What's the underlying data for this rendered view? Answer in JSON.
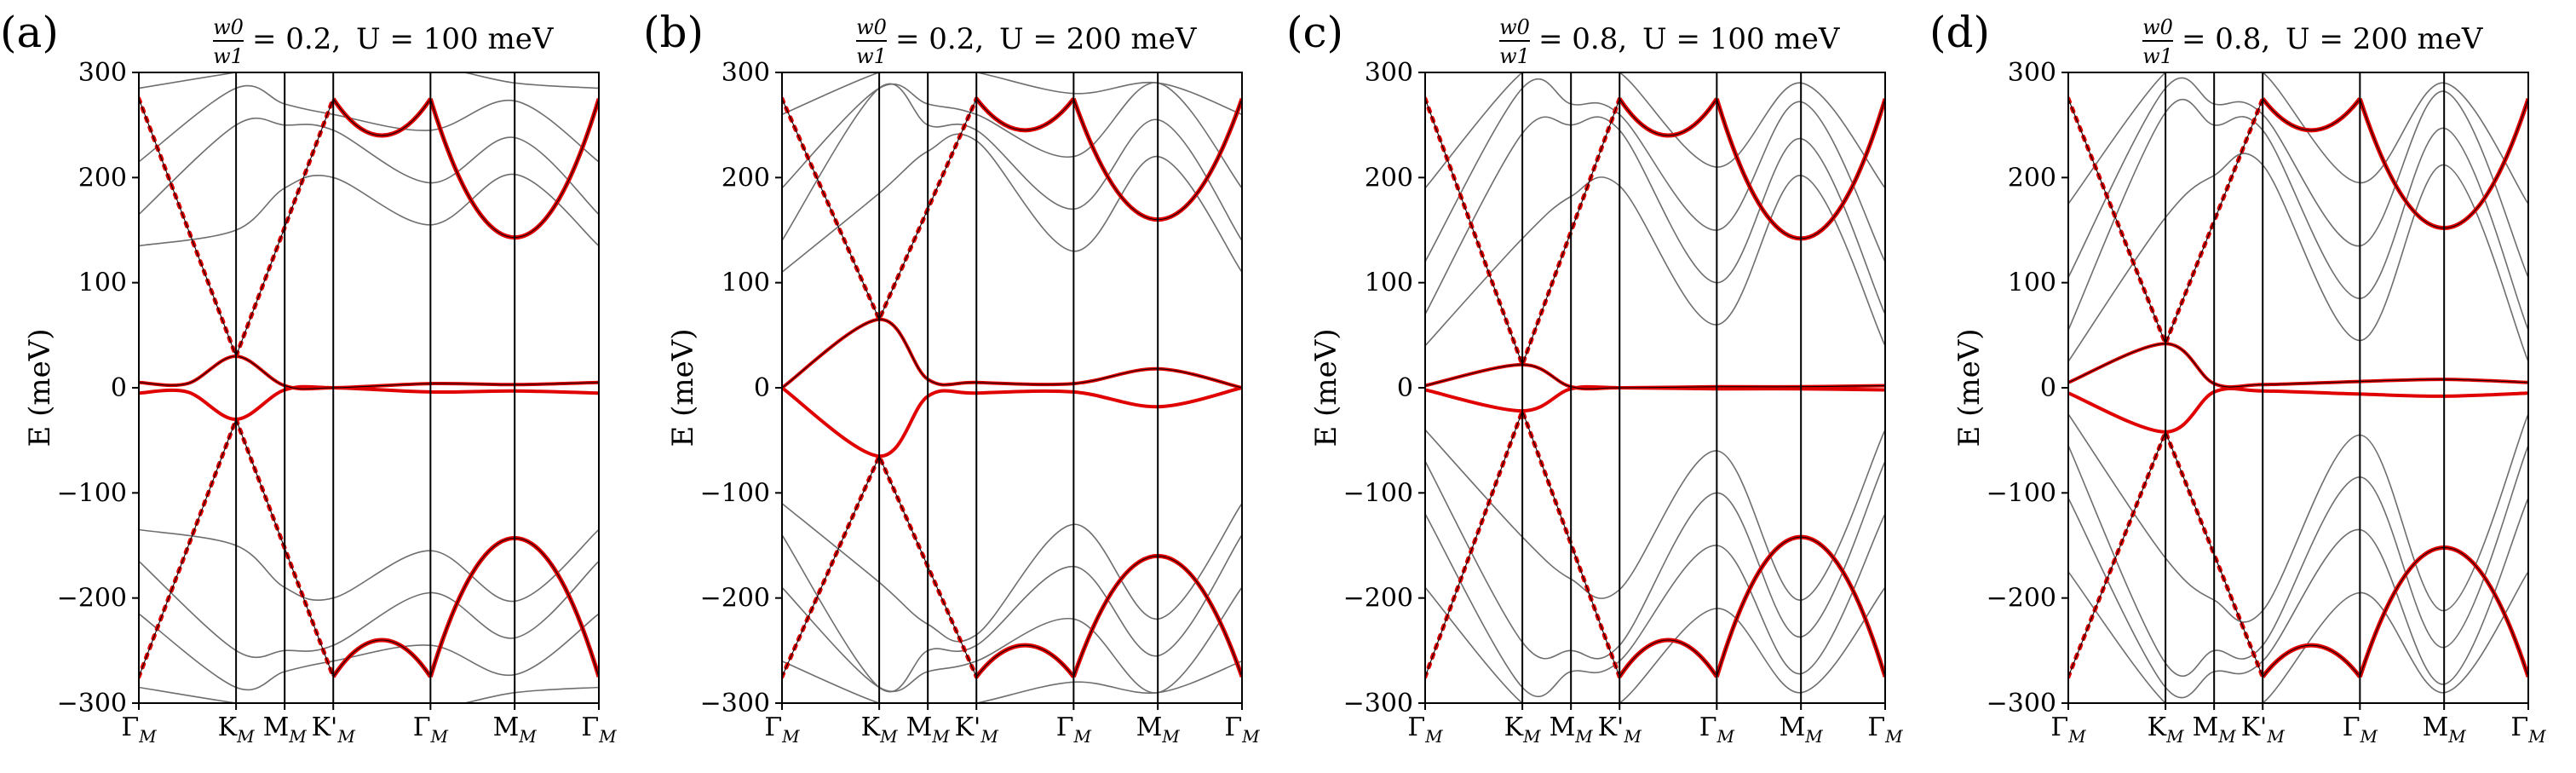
{
  "figure": {
    "description_free": true
  },
  "chart_data": [
    {
      "type": "line",
      "panel_label": "(a)",
      "title": "w0/w1 = 0.2,  U = 100 meV",
      "title_parts": {
        "ratio_num": "w0",
        "ratio_den": "w1",
        "ratio_value": "= 0.2,",
        "u_text": "U = 100 meV"
      },
      "xlabel": "",
      "ylabel": "E (meV)",
      "ylim": [
        -300,
        300
      ],
      "yticks": [
        -300,
        -200,
        -100,
        0,
        100,
        200,
        300
      ],
      "ytick_labels": [
        "−300",
        "−200",
        "−100",
        "0",
        "100",
        "200",
        "300"
      ],
      "kpoints": [
        "Γ_M",
        "K_M",
        "M_M",
        "K'_M",
        "Γ_M",
        "M_M",
        "Γ_M"
      ],
      "kpoint_positions": [
        0,
        1,
        1.5,
        2,
        3,
        3.866,
        4.732
      ],
      "dirac_energy": 30,
      "top_min": 240,
      "m_band": 143,
      "gray_offset": 135,
      "series": [
        {
          "name": "flat-bands",
          "style": "red",
          "points": [
            [
              0,
              5
            ],
            [
              0.5,
              4
            ],
            [
              1,
              30
            ],
            [
              1.5,
              2
            ],
            [
              2,
              0
            ],
            [
              3,
              4
            ],
            [
              3.866,
              3
            ],
            [
              4.732,
              5
            ]
          ]
        },
        {
          "name": "dirac-cone-up",
          "style": "red-dotted",
          "points": [
            [
              0,
              275
            ],
            [
              1,
              30
            ],
            [
              2,
              275
            ]
          ]
        },
        {
          "name": "dirac-cone-down",
          "style": "red-dotted",
          "points": [
            [
              0,
              -275
            ],
            [
              1,
              -30
            ],
            [
              2,
              -275
            ]
          ]
        },
        {
          "name": "upper-parabola",
          "style": "red",
          "points": [
            [
              2,
              275
            ],
            [
              2.5,
              240
            ],
            [
              3,
              275
            ],
            [
              3.866,
              143
            ],
            [
              4.732,
              275
            ]
          ]
        },
        {
          "name": "lower-parabola",
          "style": "red",
          "points": [
            [
              2,
              -275
            ],
            [
              2.5,
              -240
            ],
            [
              3,
              -275
            ],
            [
              3.866,
              -143
            ],
            [
              4.732,
              -275
            ]
          ]
        }
      ]
    },
    {
      "type": "line",
      "panel_label": "(b)",
      "title": "w0/w1 = 0.2,  U = 200 meV",
      "title_parts": {
        "ratio_num": "w0",
        "ratio_den": "w1",
        "ratio_value": "= 0.2,",
        "u_text": "U = 200 meV"
      },
      "xlabel": "",
      "ylabel": "E (meV)",
      "ylim": [
        -300,
        300
      ],
      "yticks": [
        -300,
        -200,
        -100,
        0,
        100,
        200,
        300
      ],
      "ytick_labels": [
        "−300",
        "−200",
        "−100",
        "0",
        "100",
        "200",
        "300"
      ],
      "kpoints": [
        "Γ_M",
        "K_M",
        "M_M",
        "K'_M",
        "Γ_M",
        "M_M",
        "Γ_M"
      ],
      "kpoint_positions": [
        0,
        1,
        1.5,
        2,
        3,
        3.866,
        4.732
      ],
      "dirac_energy": 65,
      "top_min": 245,
      "m_band": 160,
      "gray_offset": 110,
      "series": [
        {
          "name": "flat-bands",
          "style": "red",
          "points": [
            [
              0,
              0
            ],
            [
              1,
              65
            ],
            [
              1.5,
              8
            ],
            [
              2,
              5
            ],
            [
              3,
              4
            ],
            [
              3.866,
              18
            ],
            [
              4.732,
              0
            ]
          ]
        },
        {
          "name": "dirac-cone-up",
          "style": "red-dotted",
          "points": [
            [
              0,
              275
            ],
            [
              1,
              65
            ],
            [
              2,
              275
            ]
          ]
        },
        {
          "name": "dirac-cone-down",
          "style": "red-dotted",
          "points": [
            [
              0,
              -275
            ],
            [
              1,
              -65
            ],
            [
              2,
              -275
            ]
          ]
        },
        {
          "name": "upper-parabola",
          "style": "red",
          "points": [
            [
              2,
              275
            ],
            [
              2.5,
              245
            ],
            [
              3,
              275
            ],
            [
              3.866,
              160
            ],
            [
              4.732,
              275
            ]
          ]
        },
        {
          "name": "lower-parabola",
          "style": "red",
          "points": [
            [
              2,
              -275
            ],
            [
              2.5,
              -245
            ],
            [
              3,
              -275
            ],
            [
              3.866,
              -160
            ],
            [
              4.732,
              -275
            ]
          ]
        }
      ]
    },
    {
      "type": "line",
      "panel_label": "(c)",
      "title": "w0/w1 = 0.8,  U = 100 meV",
      "title_parts": {
        "ratio_num": "w0",
        "ratio_den": "w1",
        "ratio_value": "= 0.8,",
        "u_text": "U = 100 meV"
      },
      "xlabel": "",
      "ylabel": "E (meV)",
      "ylim": [
        -300,
        300
      ],
      "yticks": [
        -300,
        -200,
        -100,
        0,
        100,
        200,
        300
      ],
      "ytick_labels": [
        "−300",
        "−200",
        "−100",
        "0",
        "100",
        "200",
        "300"
      ],
      "kpoints": [
        "Γ_M",
        "K_M",
        "M_M",
        "K'_M",
        "Γ_M",
        "M_M",
        "Γ_M"
      ],
      "kpoint_positions": [
        0,
        1,
        1.5,
        2,
        3,
        3.866,
        4.732
      ],
      "dirac_energy": 22,
      "top_min": 240,
      "m_band": 142,
      "gray_offset": 40,
      "series": [
        {
          "name": "flat-bands",
          "style": "red",
          "points": [
            [
              0,
              2
            ],
            [
              1,
              22
            ],
            [
              1.5,
              1
            ],
            [
              2,
              0
            ],
            [
              3,
              1
            ],
            [
              3.866,
              1
            ],
            [
              4.732,
              2
            ]
          ]
        },
        {
          "name": "dirac-cone-up",
          "style": "red-dotted",
          "points": [
            [
              0,
              275
            ],
            [
              1,
              22
            ],
            [
              2,
              275
            ]
          ]
        },
        {
          "name": "dirac-cone-down",
          "style": "red-dotted",
          "points": [
            [
              0,
              -275
            ],
            [
              1,
              -22
            ],
            [
              2,
              -275
            ]
          ]
        },
        {
          "name": "upper-parabola",
          "style": "red",
          "points": [
            [
              2,
              275
            ],
            [
              2.5,
              240
            ],
            [
              3,
              275
            ],
            [
              3.866,
              142
            ],
            [
              4.732,
              275
            ]
          ]
        },
        {
          "name": "lower-parabola",
          "style": "red",
          "points": [
            [
              2,
              -275
            ],
            [
              2.5,
              -240
            ],
            [
              3,
              -275
            ],
            [
              3.866,
              -142
            ],
            [
              4.732,
              -275
            ]
          ]
        }
      ]
    },
    {
      "type": "line",
      "panel_label": "(d)",
      "title": "w0/w1 = 0.8,  U = 200 meV",
      "title_parts": {
        "ratio_num": "w0",
        "ratio_den": "w1",
        "ratio_value": "= 0.8,",
        "u_text": "U = 200 meV"
      },
      "xlabel": "",
      "ylabel": "E (meV)",
      "ylim": [
        -300,
        300
      ],
      "yticks": [
        -300,
        -200,
        -100,
        0,
        100,
        200,
        300
      ],
      "ytick_labels": [
        "−300",
        "−200",
        "−100",
        "0",
        "100",
        "200",
        "300"
      ],
      "kpoints": [
        "Γ_M",
        "K_M",
        "M_M",
        "K'_M",
        "Γ_M",
        "M_M",
        "Γ_M"
      ],
      "kpoint_positions": [
        0,
        1,
        1.5,
        2,
        3,
        3.866,
        4.732
      ],
      "dirac_energy": 42,
      "top_min": 245,
      "m_band": 152,
      "gray_offset": 25,
      "series": [
        {
          "name": "flat-bands",
          "style": "red",
          "points": [
            [
              0,
              5
            ],
            [
              1,
              42
            ],
            [
              1.5,
              4
            ],
            [
              2,
              3
            ],
            [
              3,
              6
            ],
            [
              3.866,
              8
            ],
            [
              4.732,
              5
            ]
          ]
        },
        {
          "name": "dirac-cone-up",
          "style": "red-dotted",
          "points": [
            [
              0,
              275
            ],
            [
              1,
              42
            ],
            [
              2,
              275
            ]
          ]
        },
        {
          "name": "dirac-cone-down",
          "style": "red-dotted",
          "points": [
            [
              0,
              -275
            ],
            [
              1,
              -42
            ],
            [
              2,
              -275
            ]
          ]
        },
        {
          "name": "upper-parabola",
          "style": "red",
          "points": [
            [
              2,
              275
            ],
            [
              2.5,
              245
            ],
            [
              3,
              275
            ],
            [
              3.866,
              152
            ],
            [
              4.732,
              275
            ]
          ]
        },
        {
          "name": "lower-parabola",
          "style": "red",
          "points": [
            [
              2,
              -275
            ],
            [
              2.5,
              -245
            ],
            [
              3,
              -275
            ],
            [
              3.866,
              -152
            ],
            [
              4.732,
              -275
            ]
          ]
        }
      ]
    }
  ],
  "colors": {
    "red_band": "#e00000",
    "gray_band": "#6e6e6e",
    "axis": "#000000"
  }
}
